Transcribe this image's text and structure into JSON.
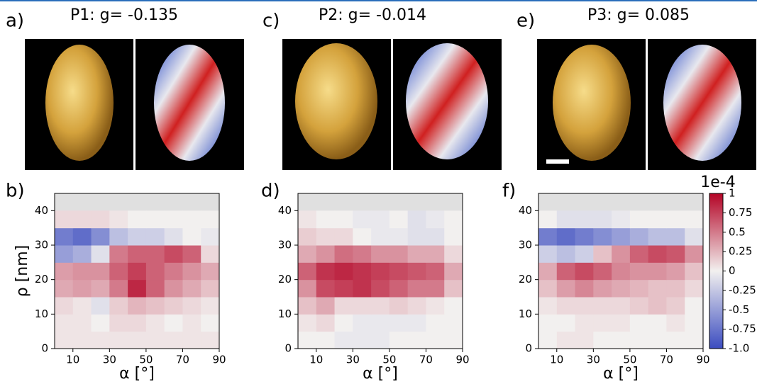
{
  "images": [
    {
      "label": "a)",
      "title": "P1: g= -0.135"
    },
    {
      "label": "c)",
      "title": "P2: g= -0.014"
    },
    {
      "label": "e)",
      "title": "P3: g= 0.085"
    }
  ],
  "colorbar": {
    "offset_label": "1e-4",
    "clim": [
      -1,
      1
    ],
    "colors": [
      "#3b4cc0",
      "#f2f0ef",
      "#b40426"
    ],
    "ticks": [
      1,
      0.75,
      0.5,
      0.25,
      0,
      -0.25,
      -0.5,
      -0.75,
      {
        "value": -1,
        "label": "-1.0"
      }
    ]
  },
  "chart_data": [
    {
      "type": "heatmap",
      "panel_label": "b)",
      "xlabel": "α [°]",
      "ylabel": "ρ [nm]",
      "xbins": [
        0,
        10,
        20,
        30,
        40,
        50,
        60,
        70,
        80,
        90
      ],
      "ybins": [
        0,
        5,
        10,
        15,
        20,
        25,
        30,
        35,
        40,
        45
      ],
      "xlim": [
        0,
        90
      ],
      "ylim": [
        0,
        45
      ],
      "xticks": [
        10,
        30,
        50,
        70,
        90
      ],
      "yticks": [
        0,
        10,
        20,
        30,
        40
      ],
      "values": [
        [
          0.05,
          0.05,
          0.05,
          0.05,
          0.05,
          0.05,
          0.05,
          0.05,
          0.05
        ],
        [
          0.05,
          0.05,
          0,
          0.1,
          0.1,
          0.05,
          0,
          0.05,
          0
        ],
        [
          0.1,
          0.05,
          -0.1,
          0.15,
          0.25,
          0.2,
          0.15,
          0.1,
          0.05
        ],
        [
          0.3,
          0.35,
          0.3,
          0.5,
          0.85,
          0.6,
          0.4,
          0.3,
          0.2
        ],
        [
          0.35,
          0.4,
          0.4,
          0.6,
          0.75,
          0.6,
          0.5,
          0.4,
          0.3
        ],
        [
          -0.5,
          -0.4,
          -0.1,
          0.5,
          0.6,
          0.6,
          0.7,
          0.6,
          0.1
        ],
        [
          -0.7,
          -0.8,
          -0.6,
          -0.3,
          -0.2,
          -0.2,
          -0.1,
          0,
          -0.05
        ],
        [
          0.1,
          0.1,
          0.1,
          0.05,
          0,
          0,
          0,
          0,
          0
        ],
        [
          null,
          null,
          null,
          null,
          null,
          null,
          null,
          null,
          null
        ]
      ]
    },
    {
      "type": "heatmap",
      "panel_label": "d)",
      "xlabel": "α [°]",
      "xbins": [
        0,
        10,
        20,
        30,
        40,
        50,
        60,
        70,
        80,
        90
      ],
      "ybins": [
        0,
        5,
        10,
        15,
        20,
        25,
        30,
        35,
        40,
        45
      ],
      "xlim": [
        0,
        90
      ],
      "ylim": [
        0,
        45
      ],
      "xticks": [
        10,
        30,
        50,
        70,
        90
      ],
      "yticks": [
        0,
        10,
        20,
        30,
        40
      ],
      "values": [
        [
          0,
          0,
          -0.05,
          -0.05,
          -0.05,
          0,
          0,
          0,
          0
        ],
        [
          0.05,
          0.1,
          0,
          -0.05,
          -0.05,
          -0.05,
          -0.05,
          0,
          0
        ],
        [
          0.2,
          0.3,
          0.1,
          0.1,
          0.1,
          0.15,
          0.1,
          0.05,
          0
        ],
        [
          0.4,
          0.7,
          0.75,
          0.8,
          0.7,
          0.6,
          0.5,
          0.5,
          0.2
        ],
        [
          0.6,
          0.8,
          0.85,
          0.8,
          0.75,
          0.7,
          0.65,
          0.6,
          0.3
        ],
        [
          0.3,
          0.4,
          0.55,
          0.5,
          0.4,
          0.4,
          0.3,
          0.3,
          0.1
        ],
        [
          0.15,
          0.1,
          0.1,
          0,
          -0.05,
          -0.05,
          -0.1,
          -0.1,
          0
        ],
        [
          0.05,
          0,
          0,
          -0.05,
          -0.05,
          0,
          -0.1,
          -0.05,
          0
        ],
        [
          null,
          null,
          null,
          null,
          null,
          null,
          null,
          null,
          null
        ]
      ]
    },
    {
      "type": "heatmap",
      "panel_label": "f)",
      "xlabel": "α [°]",
      "xbins": [
        0,
        10,
        20,
        30,
        40,
        50,
        60,
        70,
        80,
        90
      ],
      "ybins": [
        0,
        5,
        10,
        15,
        20,
        25,
        30,
        35,
        40,
        45
      ],
      "xlim": [
        0,
        90
      ],
      "ylim": [
        0,
        45
      ],
      "xticks": [
        10,
        30,
        50,
        70,
        90
      ],
      "yticks": [
        0,
        10,
        20,
        30,
        40
      ],
      "values": [
        [
          0,
          0.05,
          0.05,
          0,
          0,
          0,
          0,
          0,
          0
        ],
        [
          0,
          0,
          0.05,
          0.05,
          0.05,
          0,
          0,
          0.05,
          0
        ],
        [
          0.05,
          0.1,
          0.1,
          0.1,
          0.1,
          0.15,
          0.2,
          0.15,
          0
        ],
        [
          0.2,
          0.35,
          0.45,
          0.35,
          0.3,
          0.25,
          0.2,
          0.2,
          0.1
        ],
        [
          0.3,
          0.6,
          0.7,
          0.6,
          0.45,
          0.4,
          0.4,
          0.35,
          0.2
        ],
        [
          -0.2,
          -0.3,
          -0.2,
          0.2,
          0.4,
          0.6,
          0.7,
          0.65,
          0.4
        ],
        [
          -0.7,
          -0.8,
          -0.7,
          -0.6,
          -0.5,
          -0.4,
          -0.3,
          -0.3,
          -0.1
        ],
        [
          0,
          -0.1,
          -0.1,
          -0.1,
          -0.05,
          0,
          0,
          0,
          0
        ],
        [
          null,
          null,
          null,
          null,
          null,
          null,
          null,
          null,
          null
        ]
      ]
    }
  ]
}
